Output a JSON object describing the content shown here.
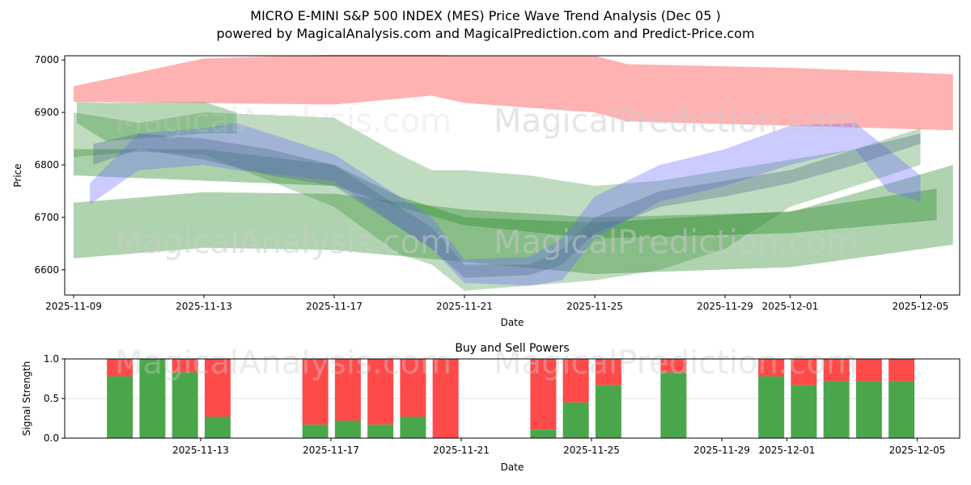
{
  "title_line1": "MICRO E-MINI S&P 500 INDEX (MES) Price Wave Trend Analysis (Dec 05 )",
  "title_line2": "powered by MagicalAnalysis.com and MagicalPrediction.com and Predict-Price.com",
  "watermarks": [
    "MagicalAnalysis.com",
    "MagicalPrediction.com"
  ],
  "chart_data": [
    {
      "type": "area",
      "title": "",
      "xlabel": "Date",
      "ylabel": "Price",
      "ylim": [
        6552,
        7008
      ],
      "x_origin": "2025-11-09",
      "x_range_days": [
        -0.3,
        27.2
      ],
      "xticks": [
        {
          "day": 0,
          "label": "2025-11-09"
        },
        {
          "day": 4,
          "label": "2025-11-13"
        },
        {
          "day": 8,
          "label": "2025-11-17"
        },
        {
          "day": 12,
          "label": "2025-11-21"
        },
        {
          "day": 16,
          "label": "2025-11-25"
        },
        {
          "day": 20,
          "label": "2025-11-29"
        },
        {
          "day": 22,
          "label": "2025-12-01"
        },
        {
          "day": 26,
          "label": "2025-12-05"
        }
      ],
      "yticks": [
        6600,
        6700,
        6800,
        6900,
        7000
      ],
      "bands": [
        {
          "color": "#ff6666",
          "opacity": 0.5,
          "x": [
            0,
            4,
            8,
            11,
            12,
            16,
            17,
            20,
            22,
            27
          ],
          "upper": [
            6950,
            7003,
            7010,
            7010,
            7008,
            7008,
            6992,
            6988,
            6985,
            6973
          ],
          "lower": [
            6920,
            6918,
            6915,
            6932,
            6918,
            6900,
            6883,
            6878,
            6875,
            6866
          ]
        },
        {
          "color": "#2e8b2e",
          "opacity": 0.35,
          "x": [
            0.1,
            1,
            4,
            5
          ],
          "upper": [
            6920,
            6918,
            6920,
            6900
          ],
          "lower": [
            6880,
            6845,
            6860,
            6860
          ]
        },
        {
          "color": "#2e8b2e",
          "opacity": 0.38,
          "x": [
            0,
            4,
            8,
            12,
            16,
            22,
            27
          ],
          "upper": [
            6728,
            6748,
            6745,
            6715,
            6700,
            6710,
            6800
          ],
          "lower": [
            6622,
            6642,
            6638,
            6615,
            6592,
            6605,
            6648
          ]
        },
        {
          "color": "#2e8b2e",
          "opacity": 0.4,
          "x": [
            0,
            4,
            8,
            10,
            12,
            16,
            22,
            26.5
          ],
          "upper": [
            6830,
            6830,
            6800,
            6740,
            6700,
            6690,
            6712,
            6755
          ],
          "lower": [
            6780,
            6770,
            6760,
            6720,
            6685,
            6660,
            6670,
            6695
          ]
        },
        {
          "color": "#2e8b2e",
          "opacity": 0.3,
          "x": [
            0,
            2,
            4,
            8,
            10,
            11,
            12,
            14,
            16,
            18,
            20,
            22,
            24,
            26
          ],
          "upper": [
            6900,
            6880,
            6900,
            6890,
            6820,
            6790,
            6790,
            6780,
            6760,
            6770,
            6790,
            6810,
            6830,
            6870
          ],
          "lower": [
            6815,
            6825,
            6820,
            6720,
            6630,
            6610,
            6560,
            6570,
            6580,
            6600,
            6640,
            6720,
            6760,
            6800
          ]
        },
        {
          "color": "#6a6aff",
          "opacity": 0.35,
          "x": [
            0.5,
            2,
            4,
            5,
            8,
            10,
            11,
            12,
            14,
            15,
            16,
            18,
            20,
            22,
            24,
            25,
            26
          ],
          "upper": [
            6765,
            6860,
            6870,
            6880,
            6820,
            6740,
            6700,
            6620,
            6625,
            6660,
            6740,
            6800,
            6830,
            6875,
            6880,
            6830,
            6780
          ],
          "lower": [
            6725,
            6790,
            6800,
            6790,
            6770,
            6680,
            6640,
            6575,
            6570,
            6580,
            6660,
            6730,
            6760,
            6800,
            6830,
            6750,
            6730
          ]
        },
        {
          "color": "#4d6b8f",
          "opacity": 0.35,
          "x": [
            0.6,
            2,
            4,
            6,
            8,
            10,
            11,
            12,
            14,
            15,
            16,
            18,
            20,
            22,
            24,
            26
          ],
          "upper": [
            6840,
            6860,
            6850,
            6830,
            6800,
            6720,
            6680,
            6610,
            6610,
            6640,
            6700,
            6750,
            6770,
            6790,
            6830,
            6860
          ],
          "lower": [
            6800,
            6830,
            6810,
            6780,
            6760,
            6680,
            6640,
            6585,
            6590,
            6610,
            6670,
            6720,
            6740,
            6765,
            6800,
            6840
          ]
        }
      ]
    },
    {
      "type": "bar",
      "title": "Buy and Sell Powers",
      "xlabel": "Date",
      "ylabel": "Signal Strength",
      "ylim": [
        0,
        1
      ],
      "yticks": [
        {
          "v": 0,
          "label": "0.0"
        },
        {
          "v": 0.5,
          "label": "0.5"
        },
        {
          "v": 1,
          "label": "1.0"
        }
      ],
      "xticks": [
        {
          "day": 4,
          "label": "2025-11-13"
        },
        {
          "day": 8,
          "label": "2025-11-17"
        },
        {
          "day": 12,
          "label": "2025-11-21"
        },
        {
          "day": 16,
          "label": "2025-11-25"
        },
        {
          "day": 20,
          "label": "2025-11-29"
        },
        {
          "day": 22,
          "label": "2025-12-01"
        },
        {
          "day": 26,
          "label": "2025-12-05"
        }
      ],
      "buy_color": "#4aa64a",
      "sell_color": "#ff4a4a",
      "days": [
        2,
        3,
        4,
        5,
        8,
        9,
        10,
        11,
        12,
        15,
        16,
        17,
        19,
        22,
        23,
        24,
        25,
        26
      ],
      "buy": [
        0.78,
        1.0,
        0.83,
        0.27,
        0.17,
        0.22,
        0.17,
        0.27,
        0.0,
        0.11,
        0.45,
        0.67,
        0.83,
        0.78,
        0.67,
        0.72,
        0.72,
        0.72
      ]
    }
  ]
}
